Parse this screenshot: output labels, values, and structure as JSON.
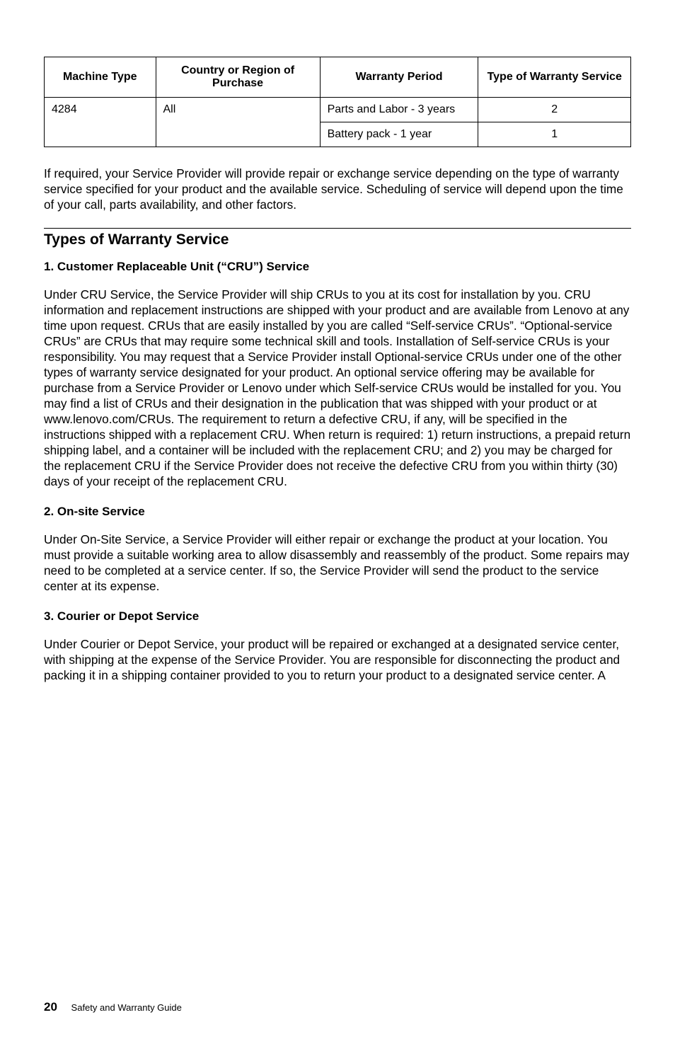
{
  "table": {
    "headers": {
      "machine_type": "Machine Type",
      "country": "Country or Region of Purchase",
      "period": "Warranty Period",
      "service": "Type of Warranty Service"
    },
    "col_widths": [
      "19%",
      "28%",
      "27%",
      "26%"
    ],
    "rows": [
      {
        "machine_type": "4284",
        "country": "All",
        "period": "Parts and Labor - 3 years",
        "service": "2"
      },
      {
        "machine_type": "",
        "country": "",
        "period": "Battery pack - 1 year",
        "service": "1"
      }
    ]
  },
  "intro_paragraph": "If required, your Service Provider will provide repair or exchange service depending on the type of warranty service specified for your product and the available service. Scheduling of service will depend upon the time of your call, parts availability, and other factors.",
  "section_title": "Types of Warranty Service",
  "sections": [
    {
      "heading": "1. Customer Replaceable Unit (“CRU”) Service",
      "body": "Under CRU Service, the Service Provider will ship CRUs to you at its cost for installation by you. CRU information and replacement instructions are shipped with your product and are available from Lenovo at any time upon request. CRUs that are easily installed by you are called “Self-service CRUs”. “Optional-service CRUs” are CRUs that may require some technical skill and tools. Installation of Self-service CRUs is your responsibility. You may request that a Service Provider install Optional-service CRUs under one of the other types of warranty service designated for your product. An optional service offering may be available for purchase from a Service Provider or Lenovo under which Self-service CRUs would be installed for you. You may find a list of CRUs and their designation in the publication that was shipped with your product or at www.lenovo.com/CRUs. The requirement to return a defective CRU, if any, will be specified in the instructions shipped with a replacement CRU. When return is required: 1) return instructions, a prepaid return shipping label, and a container will be included with the replacement CRU; and 2) you may be charged for the replacement CRU if the Service Provider does not receive the defective CRU from you within thirty (30) days of your receipt of the replacement CRU."
    },
    {
      "heading": "2. On-site Service",
      "body": "Under On-Site Service, a Service Provider will either repair or exchange the product at your location. You must provide a suitable working area to allow disassembly and reassembly of the product. Some repairs may need to be completed at a service center. If so, the Service Provider will send the product to the service center at its expense."
    },
    {
      "heading": "3. Courier or Depot Service",
      "body": "Under Courier or Depot Service, your product will be repaired or exchanged at a designated service center, with shipping at the expense of the Service Provider. You are responsible for disconnecting the product and packing it in a shipping container provided to you to return your product to a designated service center. A"
    }
  ],
  "footer": {
    "page_number": "20",
    "doc_title": "Safety and Warranty Guide"
  }
}
